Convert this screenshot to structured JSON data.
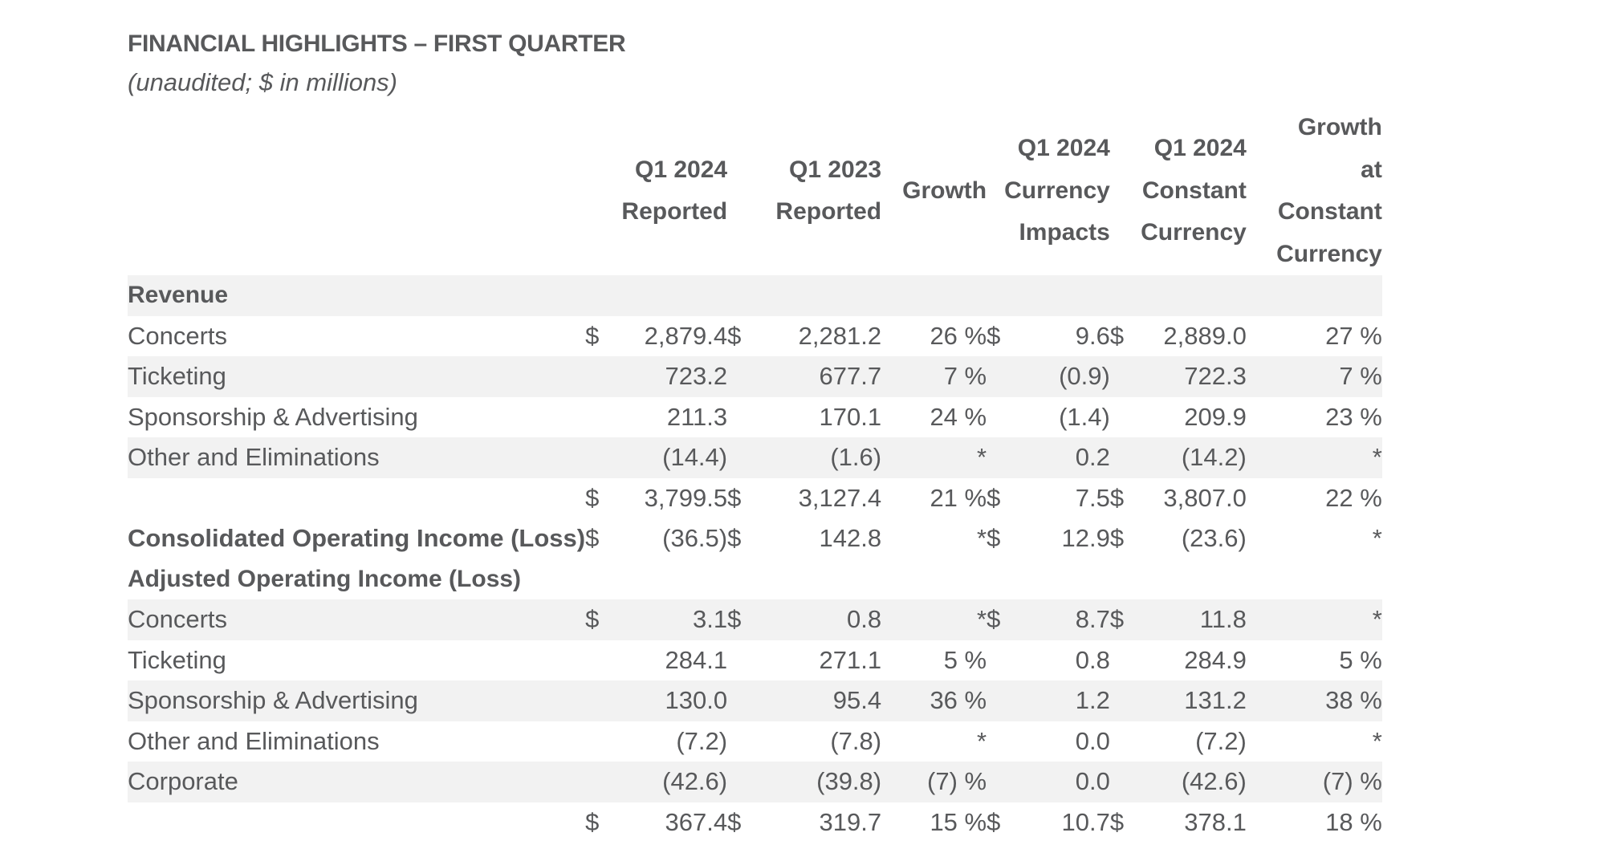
{
  "title": "FINANCIAL HIGHLIGHTS – FIRST QUARTER",
  "subtitle": "(unaudited; $ in millions)",
  "columns": {
    "q1_2024_reported": [
      "Q1 2024",
      "Reported"
    ],
    "q1_2023_reported": [
      "Q1 2023",
      "Reported"
    ],
    "growth": [
      "Growth"
    ],
    "q1_2024_currency_impacts": [
      "Q1 2024",
      "Currency",
      "Impacts"
    ],
    "q1_2024_constant_currency": [
      "Q1 2024",
      "Constant",
      "Currency"
    ],
    "growth_constant_currency": [
      "Growth",
      "at",
      "Constant",
      "Currency"
    ]
  },
  "sections": {
    "revenue_label": "Revenue",
    "adjusted_label": "Adjusted Operating Income (Loss)"
  },
  "revenue_rows": [
    {
      "label": "Concerts",
      "d1": "$",
      "q124": "2,879.4",
      "d2": "$",
      "q123": "2,281.2",
      "growth": "26 %",
      "d3": "$",
      "fx": "9.6",
      "d4": "$",
      "cc": "2,889.0",
      "gcc": "27 %"
    },
    {
      "label": "Ticketing",
      "d1": "",
      "q124": "723.2",
      "d2": "",
      "q123": "677.7",
      "growth": "7 %",
      "d3": "",
      "fx": "(0.9)",
      "d4": "",
      "cc": "722.3",
      "gcc": "7 %"
    },
    {
      "label": "Sponsorship & Advertising",
      "d1": "",
      "q124": "211.3",
      "d2": "",
      "q123": "170.1",
      "growth": "24 %",
      "d3": "",
      "fx": "(1.4)",
      "d4": "",
      "cc": "209.9",
      "gcc": "23 %"
    },
    {
      "label": "Other and Eliminations",
      "d1": "",
      "q124": "(14.4)",
      "d2": "",
      "q123": "(1.6)",
      "growth": "*",
      "d3": "",
      "fx": "0.2",
      "d4": "",
      "cc": "(14.2)",
      "gcc": "*"
    },
    {
      "label": "",
      "d1": "$",
      "q124": "3,799.5",
      "d2": "$",
      "q123": "3,127.4",
      "growth": "21 %",
      "d3": "$",
      "fx": "7.5",
      "d4": "$",
      "cc": "3,807.0",
      "gcc": "22 %"
    }
  ],
  "operating_row": {
    "label": "Consolidated Operating Income (Loss)",
    "d1": "$",
    "q124": "(36.5)",
    "d2": "$",
    "q123": "142.8",
    "growth": "*",
    "d3": "$",
    "fx": "12.9",
    "d4": "$",
    "cc": "(23.6)",
    "gcc": "*"
  },
  "adjusted_rows": [
    {
      "label": "Concerts",
      "d1": "$",
      "q124": "3.1",
      "d2": "$",
      "q123": "0.8",
      "growth": "*",
      "d3": "$",
      "fx": "8.7",
      "d4": "$",
      "cc": "11.8",
      "gcc": "*"
    },
    {
      "label": "Ticketing",
      "d1": "",
      "q124": "284.1",
      "d2": "",
      "q123": "271.1",
      "growth": "5 %",
      "d3": "",
      "fx": "0.8",
      "d4": "",
      "cc": "284.9",
      "gcc": "5 %"
    },
    {
      "label": "Sponsorship & Advertising",
      "d1": "",
      "q124": "130.0",
      "d2": "",
      "q123": "95.4",
      "growth": "36 %",
      "d3": "",
      "fx": "1.2",
      "d4": "",
      "cc": "131.2",
      "gcc": "38 %"
    },
    {
      "label": "Other and Eliminations",
      "d1": "",
      "q124": "(7.2)",
      "d2": "",
      "q123": "(7.8)",
      "growth": "*",
      "d3": "",
      "fx": "0.0",
      "d4": "",
      "cc": "(7.2)",
      "gcc": "*"
    },
    {
      "label": "Corporate",
      "d1": "",
      "q124": "(42.6)",
      "d2": "",
      "q123": "(39.8)",
      "growth": "(7) %",
      "d3": "",
      "fx": "0.0",
      "d4": "",
      "cc": "(42.6)",
      "gcc": "(7) %"
    },
    {
      "label": "",
      "d1": "$",
      "q124": "367.4",
      "d2": "$",
      "q123": "319.7",
      "growth": "15 %",
      "d3": "$",
      "fx": "10.7",
      "d4": "$",
      "cc": "378.1",
      "gcc": "18 %"
    }
  ],
  "colors": {
    "text": "#58595b",
    "row_shade": "#f2f2f2",
    "background": "#ffffff"
  }
}
